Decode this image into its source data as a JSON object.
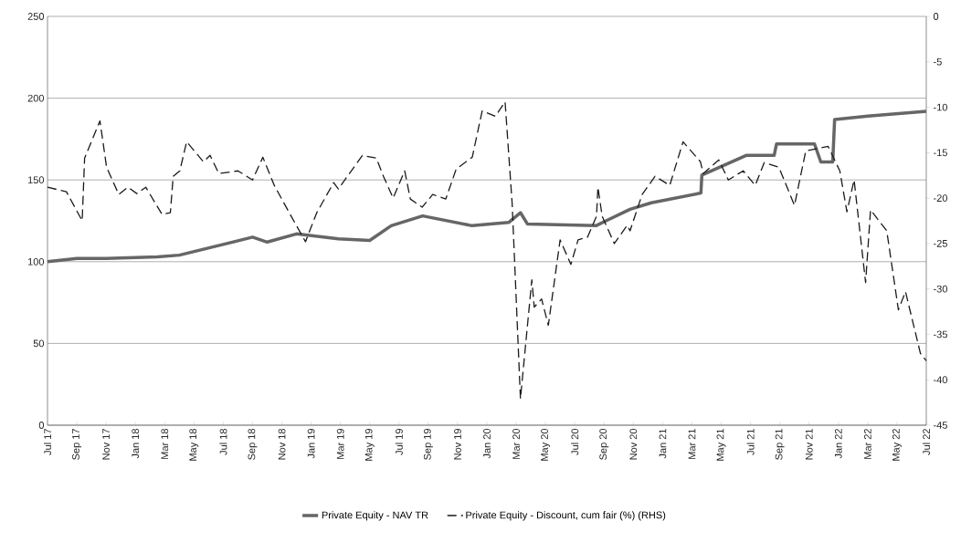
{
  "chart_data": {
    "type": "line",
    "xlim": [
      "2017-07-01",
      "2022-07-01"
    ],
    "xticks": [
      {
        "value": "2017-07-01",
        "label": "Jul 17"
      },
      {
        "value": "2017-09-01",
        "label": "Sep 17"
      },
      {
        "value": "2017-11-01",
        "label": "Nov 17"
      },
      {
        "value": "2018-01-01",
        "label": "Jan 18"
      },
      {
        "value": "2018-03-01",
        "label": "Mar 18"
      },
      {
        "value": "2018-05-01",
        "label": "May 18"
      },
      {
        "value": "2018-07-01",
        "label": "Jul 18"
      },
      {
        "value": "2018-09-01",
        "label": "Sep 18"
      },
      {
        "value": "2018-11-01",
        "label": "Nov 18"
      },
      {
        "value": "2019-01-01",
        "label": "Jan 19"
      },
      {
        "value": "2019-03-01",
        "label": "Mar 19"
      },
      {
        "value": "2019-05-01",
        "label": "May 19"
      },
      {
        "value": "2019-07-01",
        "label": "Jul 19"
      },
      {
        "value": "2019-09-01",
        "label": "Sep 19"
      },
      {
        "value": "2019-11-01",
        "label": "Nov 19"
      },
      {
        "value": "2020-01-01",
        "label": "Jan 20"
      },
      {
        "value": "2020-03-01",
        "label": "Mar 20"
      },
      {
        "value": "2020-05-01",
        "label": "May 20"
      },
      {
        "value": "2020-07-01",
        "label": "Jul 20"
      },
      {
        "value": "2020-09-01",
        "label": "Sep 20"
      },
      {
        "value": "2020-11-01",
        "label": "Nov 20"
      },
      {
        "value": "2021-01-01",
        "label": "Jan 21"
      },
      {
        "value": "2021-03-01",
        "label": "Mar 21"
      },
      {
        "value": "2021-05-01",
        "label": "May 21"
      },
      {
        "value": "2021-07-01",
        "label": "Jul 21"
      },
      {
        "value": "2021-09-01",
        "label": "Sep 21"
      },
      {
        "value": "2021-11-01",
        "label": "Nov 21"
      },
      {
        "value": "2022-01-01",
        "label": "Jan 22"
      },
      {
        "value": "2022-03-01",
        "label": "Mar 22"
      },
      {
        "value": "2022-05-01",
        "label": "May 22"
      },
      {
        "value": "2022-07-01",
        "label": "Jul 22"
      }
    ],
    "ylim": [
      0,
      250
    ],
    "yticks": [
      0,
      50,
      100,
      150,
      200,
      250
    ],
    "y2lim": [
      -45,
      0
    ],
    "y2ticks": [
      -45,
      -40,
      -35,
      -30,
      -25,
      -20,
      -15,
      -10,
      -5,
      0
    ],
    "grid": "y",
    "legend": "bottom",
    "marker": "none",
    "series": [
      {
        "name": "Private Equity - NAV TR",
        "color": "#666666",
        "line_style": "solid",
        "x": [
          "2017-07-01",
          "2017-09-01",
          "2017-11-01",
          "2018-02-15",
          "2018-04-01",
          "2018-09-01",
          "2018-10-01",
          "2018-12-01",
          "2019-02-25",
          "2019-05-01",
          "2019-06-15",
          "2019-08-20",
          "2019-12-01",
          "2020-02-15",
          "2020-03-10",
          "2020-03-25",
          "2020-08-15",
          "2020-09-05",
          "2020-10-25",
          "2020-12-08",
          "2021-03-20",
          "2021-03-22",
          "2021-06-22",
          "2021-08-20",
          "2021-08-25",
          "2021-11-12",
          "2021-11-25",
          "2021-12-20",
          "2021-12-24",
          "2022-03-01",
          "2022-07-01"
        ],
        "values": [
          100,
          102,
          102,
          103,
          104,
          115,
          112,
          117,
          114,
          113,
          122,
          128,
          122,
          124,
          130,
          123,
          122,
          125,
          132,
          136,
          142,
          153,
          165,
          165,
          172,
          172,
          161,
          161,
          187,
          189,
          192
        ]
      },
      {
        "name": "Private Equity - Discount, cum fair (%) (RHS)",
        "color": "#1a1a1a",
        "line_style": "dashed",
        "axis": "y2",
        "x": [
          "2017-07-01",
          "2017-08-10",
          "2017-09-12",
          "2017-09-17",
          "2017-10-19",
          "2017-11-02",
          "2017-11-27",
          "2017-12-16",
          "2018-01-04",
          "2018-01-23",
          "2018-02-24",
          "2018-03-13",
          "2018-03-19",
          "2018-04-02",
          "2018-04-16",
          "2018-05-21",
          "2018-06-04",
          "2018-06-22",
          "2018-08-01",
          "2018-09-01",
          "2018-09-22",
          "2018-10-16",
          "2018-11-16",
          "2018-12-20",
          "2019-01-13",
          "2019-02-16",
          "2019-02-25",
          "2019-04-16",
          "2019-05-15",
          "2019-05-30",
          "2019-06-19",
          "2019-07-13",
          "2019-07-25",
          "2019-08-19",
          "2019-09-10",
          "2019-10-07",
          "2019-10-29",
          "2019-12-01",
          "2019-12-22",
          "2020-01-19",
          "2020-02-08",
          "2020-02-22",
          "2020-03-10",
          "2020-04-03",
          "2020-04-08",
          "2020-04-23",
          "2020-05-07",
          "2020-06-01",
          "2020-06-23",
          "2020-07-08",
          "2020-07-28",
          "2020-08-16",
          "2020-08-19",
          "2020-08-28",
          "2020-09-22",
          "2020-10-19",
          "2020-10-25",
          "2020-11-19",
          "2020-12-16",
          "2021-01-16",
          "2021-02-12",
          "2021-03-19",
          "2021-03-25",
          "2021-04-26",
          "2021-05-16",
          "2021-06-16",
          "2021-07-11",
          "2021-07-30",
          "2021-08-30",
          "2021-10-01",
          "2021-10-25",
          "2021-12-10",
          "2022-01-04",
          "2022-01-19",
          "2022-02-03",
          "2022-02-25",
          "2022-03-07",
          "2022-04-10",
          "2022-05-04",
          "2022-05-19",
          "2022-06-19",
          "2022-07-01"
        ],
        "values": [
          -18.8,
          -19.3,
          -22.5,
          -15.6,
          -11.5,
          -16.6,
          -19.6,
          -18.8,
          -19.5,
          -18.8,
          -21.8,
          -21.6,
          -17.6,
          -17.0,
          -13.8,
          -16.0,
          -15.3,
          -17.3,
          -17.0,
          -18.0,
          -15.5,
          -18.6,
          -21.6,
          -24.8,
          -21.6,
          -18.3,
          -19.0,
          -15.3,
          -15.6,
          -17.6,
          -20.0,
          -17.0,
          -20.1,
          -21.0,
          -19.6,
          -20.1,
          -16.8,
          -15.5,
          -10.4,
          -11.0,
          -9.4,
          -20.6,
          -42.1,
          -29.0,
          -32.0,
          -31.1,
          -34.0,
          -24.6,
          -27.3,
          -24.6,
          -24.3,
          -22.0,
          -18.8,
          -22.0,
          -25.0,
          -23.0,
          -23.6,
          -19.6,
          -17.6,
          -18.6,
          -13.8,
          -16.0,
          -17.3,
          -15.8,
          -18.0,
          -17.0,
          -18.6,
          -16.1,
          -16.6,
          -20.8,
          -14.8,
          -14.3,
          -17.0,
          -21.5,
          -18.0,
          -29.3,
          -21.3,
          -23.6,
          -32.3,
          -30.3,
          -37.1,
          -37.9
        ]
      }
    ]
  }
}
